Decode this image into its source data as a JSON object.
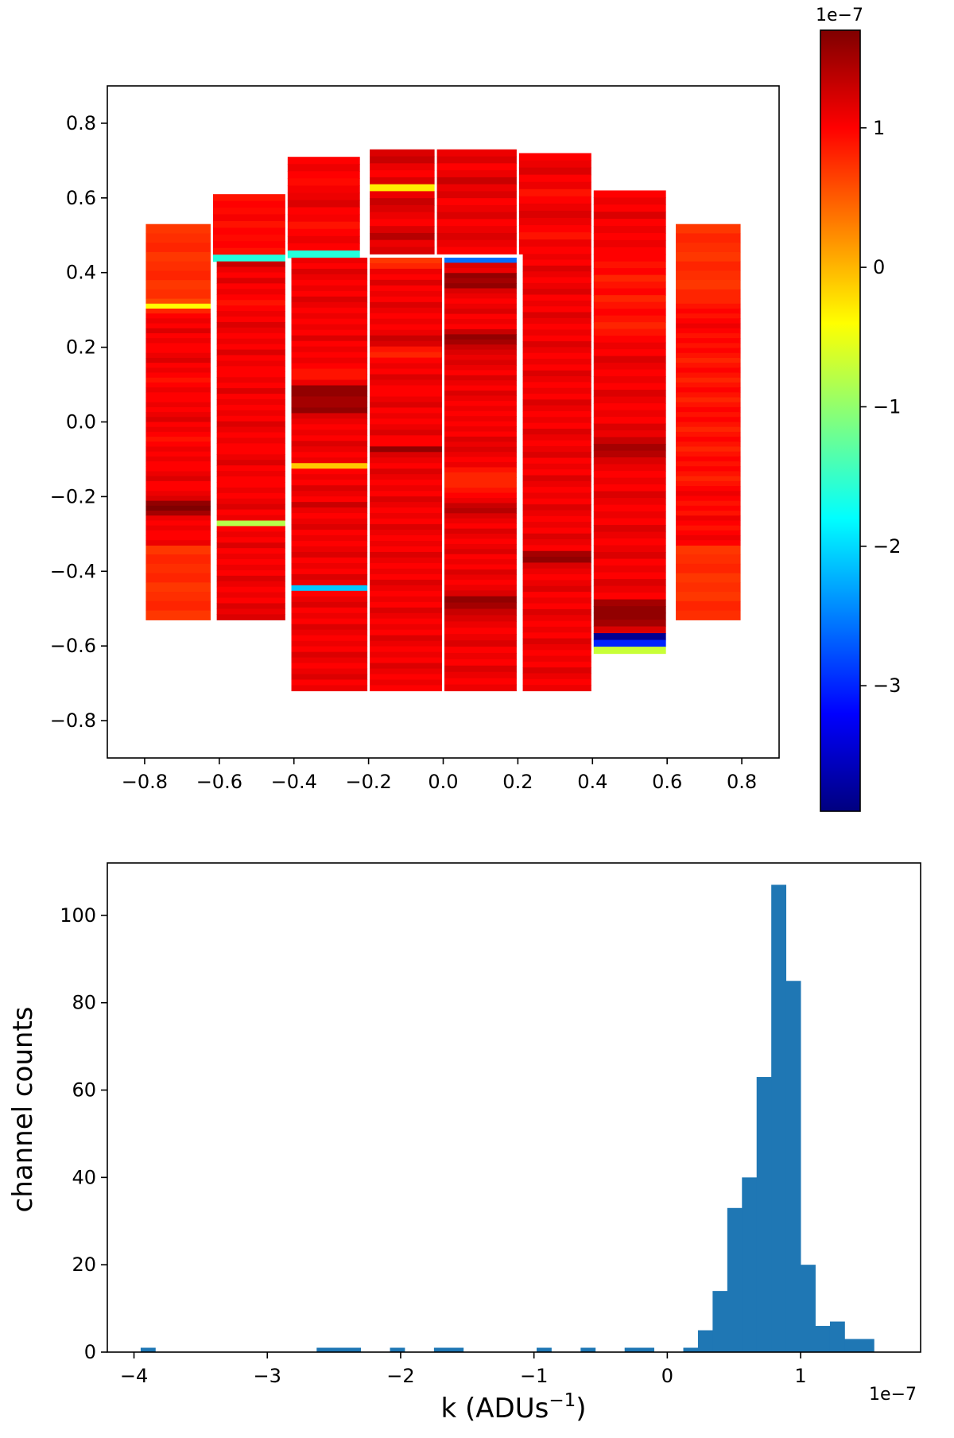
{
  "chart_data": [
    {
      "type": "heatmap",
      "title": "",
      "xlabel": "",
      "ylabel": "",
      "xlim": [
        -0.9,
        0.9
      ],
      "ylim": [
        -0.9,
        0.9
      ],
      "xticks": [
        -0.8,
        -0.6,
        -0.4,
        -0.2,
        0.0,
        0.2,
        0.4,
        0.6,
        0.8
      ],
      "yticks": [
        0.8,
        0.6,
        0.4,
        0.2,
        0.0,
        -0.2,
        -0.4,
        -0.6,
        -0.8
      ],
      "xtick_labels": [
        "−0.8",
        "−0.6",
        "−0.4",
        "−0.2",
        "0.0",
        "0.2",
        "0.4",
        "0.6",
        "0.8"
      ],
      "ytick_labels": [
        "0.8",
        "0.6",
        "0.4",
        "0.2",
        "0.0",
        "−0.2",
        "−0.4",
        "−0.6",
        "−0.8"
      ],
      "colormap": "jet",
      "colorbar": {
        "range": [
          -3.9,
          1.7
        ],
        "ticks": [
          1,
          0,
          -1,
          -2,
          -3
        ],
        "tick_labels": [
          "1",
          "0",
          "−1",
          "−2",
          "−3"
        ],
        "scale_label": "1e−7"
      },
      "base_value": 1.0,
      "ccds": [
        {
          "x": [
            -0.8,
            -0.62
          ],
          "y": [
            -0.53,
            -0.33
          ],
          "v": [
            0.7,
            0.8,
            0.75,
            0.8,
            0.7,
            0.75,
            0.8,
            0.7
          ]
        },
        {
          "x": [
            -0.8,
            -0.62
          ],
          "y": [
            0.33,
            0.53
          ],
          "v": [
            0.7,
            0.75,
            0.8,
            0.7,
            0.75,
            0.8,
            0.7,
            0.75
          ]
        },
        {
          "x": [
            0.62,
            0.8
          ],
          "y": [
            -0.53,
            -0.33
          ],
          "v": [
            0.7,
            0.75,
            0.8,
            0.7,
            0.75,
            0.7,
            0.8,
            0.75
          ]
        },
        {
          "x": [
            0.62,
            0.8
          ],
          "y": [
            0.33,
            0.53
          ],
          "v": [
            0.7,
            0.8,
            0.75,
            0.7,
            0.8,
            0.75,
            0.7,
            0.8
          ]
        },
        {
          "x": [
            -0.62,
            -0.42
          ],
          "y": [
            0.43,
            0.61
          ],
          "v": [
            0.9,
            1.0,
            0.95,
            1.05,
            0.9,
            1.0,
            0.95,
            1.0,
            0.9,
            -1.6
          ]
        },
        {
          "x": [
            -0.42,
            -0.22
          ],
          "y": [
            0.44,
            0.71
          ],
          "v": [
            1.0,
            1.1,
            1.0,
            0.95,
            1.05,
            1.1,
            1.2,
            1.0,
            1.05,
            0.9,
            1.0,
            1.1,
            1.0,
            -1.6
          ]
        },
        {
          "x": [
            -0.2,
            -0.02
          ],
          "y": [
            0.45,
            0.73
          ],
          "v": [
            1.2,
            1.3,
            1.1,
            1.0,
            1.2,
            -0.3,
            1.1,
            1.3,
            1.2,
            1.1,
            1.0,
            1.2,
            1.4,
            1.1,
            1.2
          ]
        },
        {
          "x": [
            -0.02,
            0.2
          ],
          "y": [
            0.45,
            0.73
          ],
          "v": [
            1.1,
            1.2,
            1.0,
            1.1,
            1.3,
            1.1,
            1.2,
            1.0,
            1.1,
            1.2,
            1.0,
            1.1,
            1.2,
            1.1,
            1.0
          ]
        },
        {
          "x": [
            0.2,
            0.4
          ],
          "y": [
            0.45,
            0.72
          ],
          "v": [
            1.0,
            1.1,
            1.2,
            1.0,
            1.1,
            0.9,
            1.0,
            1.1,
            1.2,
            1.1,
            1.0,
            0.9,
            1.1,
            1.0
          ]
        },
        {
          "x": [
            0.4,
            0.6
          ],
          "y": [
            0.43,
            0.62
          ],
          "v": [
            1.0,
            1.1,
            1.0,
            1.2,
            1.0,
            1.1,
            1.0,
            1.1,
            1.0,
            1.0
          ]
        },
        {
          "x": [
            -0.8,
            -0.62
          ],
          "y": [
            -0.33,
            0.33
          ],
          "v": [
            0.6,
            -0.4,
            0.8,
            1.0,
            1.1,
            1.0,
            1.2,
            1.0,
            1.1,
            1.0,
            1.0,
            1.1,
            1.2,
            1.0,
            1.1,
            1.0,
            0.9,
            1.0,
            1.1,
            1.0,
            1.0,
            1.1,
            1.0,
            1.1,
            1.2,
            1.0,
            1.1,
            1.0,
            0.9,
            1.0,
            1.1,
            1.0,
            1.1,
            1.0,
            1.0,
            1.1,
            1.2,
            1.0,
            1.0,
            1.1,
            1.2,
            1.6,
            1.7,
            1.5,
            1.1,
            1.0,
            1.1,
            1.0,
            1.0,
            1.1
          ]
        },
        {
          "x": [
            -0.61,
            -0.42
          ],
          "y": [
            -0.53,
            0.43
          ],
          "v": [
            1.3,
            1.1,
            1.0,
            1.2,
            1.0,
            1.1,
            1.0,
            0.9,
            1.0,
            1.1,
            1.0,
            1.2,
            1.1,
            1.0,
            1.1,
            1.0,
            1.2,
            1.0,
            1.1,
            1.0,
            1.0,
            1.1,
            1.0,
            1.2,
            1.0,
            1.1,
            1.0,
            1.1,
            1.0,
            1.2,
            1.1,
            1.0,
            1.1,
            1.0,
            1.0,
            1.1,
            1.2,
            1.0,
            1.1,
            1.0,
            1.0,
            1.1,
            1.0,
            1.1,
            1.2,
            1.0,
            1.1,
            -0.8,
            1.0,
            1.1,
            1.0,
            1.2,
            1.0,
            1.1,
            1.0,
            1.1,
            1.0,
            1.2,
            1.1,
            1.0,
            1.1,
            1.0,
            1.2,
            1.1,
            1.2
          ]
        },
        {
          "x": [
            -0.41,
            -0.2
          ],
          "y": [
            -0.72,
            0.44
          ],
          "v": [
            1.1,
            1.0,
            1.2,
            1.1,
            1.0,
            1.1,
            1.0,
            1.2,
            1.1,
            1.0,
            1.1,
            1.0,
            1.1,
            1.0,
            1.2,
            1.0,
            1.1,
            1.0,
            1.1,
            1.0,
            0.9,
            0.9,
            1.1,
            1.6,
            1.6,
            1.5,
            1.5,
            1.6,
            1.2,
            1.1,
            1.0,
            1.1,
            1.0,
            1.2,
            1.1,
            1.0,
            1.1,
            -0.1,
            1.0,
            1.1,
            1.0,
            1.2,
            1.1,
            1.0,
            1.3,
            1.1,
            1.0,
            1.1,
            1.2,
            1.0,
            1.1,
            1.0,
            1.1,
            1.2,
            1.0,
            1.1,
            1.0,
            1.2,
            1.1,
            -2.1,
            1.0,
            1.1,
            1.2,
            1.0,
            1.1,
            1.0,
            1.2,
            1.1,
            1.0,
            1.1,
            1.0,
            1.2,
            1.1,
            1.0,
            1.1,
            1.2,
            1.0,
            1.1
          ]
        },
        {
          "x": [
            -0.2,
            0.0
          ],
          "y": [
            -0.72,
            0.44
          ],
          "v": [
            0.7,
            0.8,
            1.1,
            1.0,
            1.2,
            1.0,
            1.1,
            1.0,
            1.2,
            1.1,
            1.0,
            1.1,
            1.0,
            1.1,
            1.3,
            1.2,
            0.9,
            0.8,
            1.0,
            1.1,
            1.0,
            1.2,
            1.1,
            1.0,
            1.0,
            1.1,
            1.2,
            1.0,
            1.1,
            1.0,
            1.1,
            1.2,
            1.0,
            1.0,
            1.6,
            1.2,
            1.1,
            1.0,
            1.2,
            1.1,
            1.0,
            1.1,
            1.0,
            1.2,
            1.1,
            1.0,
            1.1,
            1.0,
            1.2,
            1.1,
            1.0,
            1.1,
            1.0,
            1.2,
            1.1,
            1.0,
            1.1,
            1.0,
            1.2,
            1.1,
            1.0,
            1.1,
            1.0,
            1.2,
            1.1,
            1.0,
            1.1,
            1.0,
            1.2,
            1.1,
            1.0,
            1.1,
            1.0,
            1.2,
            1.1,
            1.0,
            1.1,
            1.0
          ]
        },
        {
          "x": [
            0.0,
            0.2
          ],
          "y": [
            -0.72,
            -0.45
          ],
          "v": [
            1.2,
            1.6,
            1.5,
            1.3,
            1.2,
            1.1,
            1.0,
            1.1,
            1.2,
            1.0,
            1.1,
            1.0,
            1.2,
            1.1,
            1.0,
            1.1
          ]
        },
        {
          "x": [
            0.0,
            0.2
          ],
          "y": [
            -0.45,
            0.44
          ],
          "v": [
            -2.6,
            1.2,
            1.1,
            1.6,
            1.5,
            1.6,
            1.2,
            1.1,
            1.0,
            1.1,
            1.2,
            1.0,
            1.1,
            1.0,
            1.3,
            1.6,
            1.5,
            1.3,
            1.2,
            1.1,
            1.2,
            1.1,
            1.0,
            1.2,
            1.1,
            1.0,
            1.2,
            1.1,
            1.0,
            1.1,
            1.0,
            1.1,
            1.0,
            1.1,
            1.0,
            1.2,
            1.1,
            1.2,
            1.1,
            1.0,
            1.1,
            0.9,
            0.8,
            0.8,
            0.8,
            0.9,
            1.0,
            1.1,
            1.3,
            1.4,
            1.2,
            1.1,
            1.0,
            1.2,
            1.1,
            1.0,
            1.1,
            1.2,
            1.0,
            1.1,
            1.0,
            1.2,
            1.1,
            1.0,
            1.1
          ]
        },
        {
          "x": [
            0.21,
            0.4
          ],
          "y": [
            -0.72,
            0.45
          ],
          "v": [
            1.1,
            1.0,
            1.2,
            1.1,
            1.0,
            1.1,
            1.2,
            1.0,
            1.1,
            1.0,
            1.2,
            1.1,
            1.0,
            1.1,
            1.0,
            1.2,
            1.1,
            1.0,
            1.1,
            1.0,
            1.2,
            1.1,
            1.0,
            1.1,
            1.0,
            1.2,
            1.1,
            1.0,
            1.1,
            1.0,
            1.2,
            1.1,
            1.0,
            1.1,
            1.2,
            1.0,
            1.1,
            1.0,
            1.2,
            1.1,
            1.0,
            1.1,
            1.0,
            1.2,
            1.1,
            1.0,
            1.1,
            1.0,
            1.2,
            1.1,
            1.0,
            1.5,
            1.6,
            1.2,
            1.1,
            1.0,
            1.1,
            1.2,
            1.0,
            1.1,
            1.0,
            1.2,
            1.1,
            1.0,
            1.1,
            1.0,
            1.2,
            1.1,
            1.0,
            1.1,
            1.0,
            1.2,
            1.1,
            1.0,
            1.1
          ]
        },
        {
          "x": [
            0.4,
            0.6
          ],
          "y": [
            -0.62,
            0.43
          ],
          "v": [
            0.9,
            1.0,
            0.8,
            0.9,
            1.0,
            0.8,
            0.9,
            1.0,
            0.9,
            0.8,
            0.9,
            1.0,
            1.1,
            1.0,
            1.2,
            1.1,
            1.0,
            1.1,
            1.0,
            1.2,
            1.1,
            1.0,
            1.1,
            1.0,
            1.2,
            1.1,
            1.3,
            1.5,
            1.4,
            1.2,
            1.1,
            1.0,
            1.1,
            1.0,
            1.2,
            1.1,
            1.0,
            1.1,
            1.0,
            1.2,
            1.1,
            1.0,
            1.1,
            1.2,
            1.0,
            1.1,
            1.0,
            1.2,
            1.1,
            1.0,
            1.5,
            1.6,
            1.6,
            1.5,
            1.2,
            -3.8,
            -3.0,
            -0.7
          ]
        },
        {
          "x": [
            0.62,
            0.8
          ],
          "y": [
            -0.33,
            0.33
          ],
          "v": [
            0.8,
            0.9,
            1.0,
            0.9,
            1.0,
            1.1,
            1.0,
            0.9,
            1.0,
            0.9,
            1.0,
            0.9,
            0.8,
            0.9,
            1.0,
            0.9,
            0.8,
            0.9,
            1.0,
            0.9,
            0.8,
            0.9,
            1.0,
            0.9,
            1.0,
            0.9,
            0.8,
            0.9,
            1.0,
            0.9,
            0.8,
            0.9,
            1.0,
            0.9,
            1.0,
            0.9,
            0.8,
            0.9,
            1.0,
            1.1,
            1.0,
            0.9,
            1.0,
            0.9,
            1.1,
            1.0,
            0.9,
            1.0,
            1.1,
            1.0
          ]
        }
      ]
    },
    {
      "type": "bar",
      "title": "",
      "xlabel": "k (ADUs",
      "xlabel_sup": "−1",
      "xlabel_close": ")",
      "ylabel": "channel counts",
      "xlim": [
        -4.2,
        1.9
      ],
      "ylim": [
        0,
        112
      ],
      "xticks": [
        -4,
        -3,
        -2,
        -1,
        0,
        1
      ],
      "xtick_labels": [
        "−4",
        "−3",
        "−2",
        "−1",
        "0",
        "1"
      ],
      "yticks": [
        0,
        20,
        40,
        60,
        80,
        100
      ],
      "ytick_labels": [
        "0",
        "20",
        "40",
        "60",
        "80",
        "100"
      ],
      "scale_label": "1e−7",
      "color": "#1f77b4",
      "bin_edges": [
        -3.95,
        -3.84,
        -3.73,
        -3.62,
        -3.51,
        -3.4,
        -3.29,
        -3.18,
        -3.07,
        -2.96,
        -2.85,
        -2.74,
        -2.63,
        -2.52,
        -2.41,
        -2.3,
        -2.19,
        -2.08,
        -1.97,
        -1.86,
        -1.75,
        -1.64,
        -1.53,
        -1.42,
        -1.31,
        -1.2,
        -1.09,
        -0.98,
        -0.87,
        -0.76,
        -0.65,
        -0.54,
        -0.43,
        -0.32,
        -0.21,
        -0.1,
        0.01,
        0.12,
        0.23,
        0.34,
        0.45,
        0.56,
        0.67,
        0.78,
        0.89,
        1.0,
        1.11,
        1.22,
        1.33,
        1.44,
        1.55,
        1.66
      ],
      "counts": [
        1,
        0,
        0,
        0,
        0,
        0,
        0,
        0,
        0,
        0,
        0,
        0,
        1,
        1,
        1,
        0,
        0,
        1,
        0,
        0,
        1,
        1,
        0,
        0,
        0,
        0,
        0,
        1,
        0,
        0,
        1,
        0,
        0,
        1,
        1,
        0,
        0,
        1,
        5,
        14,
        33,
        40,
        63,
        107,
        85,
        20,
        6,
        7,
        3,
        3,
        0
      ]
    }
  ]
}
